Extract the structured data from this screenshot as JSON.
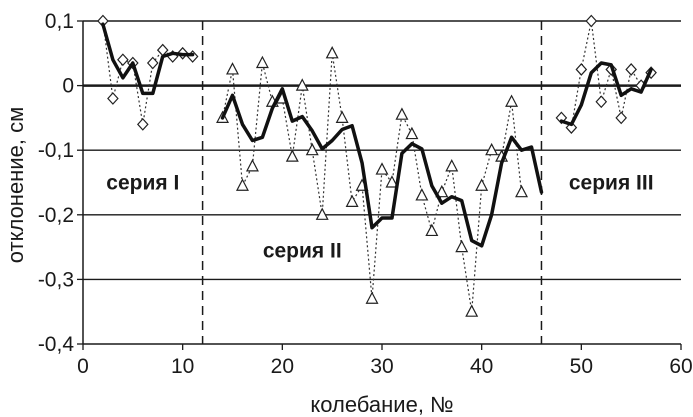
{
  "chart_data": {
    "type": "line",
    "title": "",
    "xlabel": "колебание, №",
    "ylabel": "отклонение, см",
    "xlim": [
      0,
      60
    ],
    "ylim": [
      -0.4,
      0.1
    ],
    "xticks": [
      0,
      10,
      20,
      30,
      40,
      50,
      60
    ],
    "yticks": [
      0.1,
      0,
      -0.1,
      -0.2,
      -0.3,
      -0.4
    ],
    "xtick_labels": [
      "0",
      "10",
      "20",
      "30",
      "40",
      "50",
      "60"
    ],
    "ytick_labels": [
      "0,1",
      "0",
      "-0,1",
      "-0,2",
      "-0,3",
      "-0,4"
    ],
    "grid": "horizontal",
    "series_separators_x": [
      12,
      46
    ],
    "annotations": [
      {
        "text": "серия I",
        "x": 6,
        "y": -0.15
      },
      {
        "text": "серия II",
        "x": 22,
        "y": -0.255
      },
      {
        "text": "серия III",
        "x": 53,
        "y": -0.15
      }
    ],
    "series": [
      {
        "marker": "diamond",
        "style": "dotted",
        "segments": [
          [
            [
              2,
              0.1
            ],
            [
              3,
              -0.02
            ],
            [
              4,
              0.04
            ],
            [
              5,
              0.035
            ],
            [
              6,
              -0.06
            ],
            [
              7,
              0.035
            ],
            [
              8,
              0.055
            ],
            [
              9,
              0.045
            ],
            [
              10,
              0.05
            ],
            [
              11,
              0.045
            ]
          ],
          [
            [
              48,
              -0.05
            ],
            [
              49,
              -0.065
            ],
            [
              50,
              0.025
            ],
            [
              51,
              0.1
            ],
            [
              52,
              -0.025
            ],
            [
              53,
              0.025
            ],
            [
              54,
              -0.05
            ],
            [
              55,
              0.025
            ],
            [
              56,
              0.0
            ],
            [
              57,
              0.02
            ]
          ]
        ]
      },
      {
        "marker": "triangle",
        "style": "dotted",
        "segments": [
          [
            [
              14,
              -0.05
            ],
            [
              15,
              0.025
            ],
            [
              16,
              -0.155
            ],
            [
              17,
              -0.125
            ],
            [
              18,
              0.035
            ],
            [
              19,
              -0.025
            ],
            [
              20,
              -0.02
            ],
            [
              21,
              -0.11
            ],
            [
              22,
              0.0
            ],
            [
              23,
              -0.1
            ],
            [
              24,
              -0.2
            ],
            [
              25,
              0.05
            ],
            [
              26,
              -0.05
            ],
            [
              27,
              -0.18
            ],
            [
              28,
              -0.155
            ],
            [
              29,
              -0.33
            ],
            [
              30,
              -0.13
            ],
            [
              31,
              -0.15
            ],
            [
              32,
              -0.045
            ],
            [
              33,
              -0.075
            ],
            [
              34,
              -0.17
            ],
            [
              35,
              -0.225
            ],
            [
              36,
              -0.165
            ],
            [
              37,
              -0.125
            ],
            [
              38,
              -0.25
            ],
            [
              39,
              -0.35
            ],
            [
              40,
              -0.155
            ],
            [
              41,
              -0.1
            ],
            [
              42,
              -0.11
            ],
            [
              43,
              -0.025
            ],
            [
              44,
              -0.165
            ]
          ]
        ]
      },
      {
        "marker": "none",
        "style": "solid",
        "segments": [
          [
            [
              2,
              0.095
            ],
            [
              3,
              0.04
            ],
            [
              4,
              0.012
            ],
            [
              5,
              0.035
            ],
            [
              6,
              -0.012
            ],
            [
              7,
              -0.012
            ],
            [
              8,
              0.045
            ],
            [
              9,
              0.05
            ],
            [
              10,
              0.048
            ],
            [
              11,
              0.048
            ]
          ],
          [
            [
              14,
              -0.05
            ],
            [
              15,
              -0.015
            ],
            [
              16,
              -0.06
            ],
            [
              17,
              -0.085
            ],
            [
              18,
              -0.08
            ],
            [
              19,
              -0.035
            ],
            [
              20,
              -0.005
            ],
            [
              21,
              -0.055
            ],
            [
              22,
              -0.048
            ],
            [
              23,
              -0.07
            ],
            [
              24,
              -0.098
            ],
            [
              25,
              -0.085
            ],
            [
              26,
              -0.068
            ],
            [
              27,
              -0.062
            ],
            [
              28,
              -0.12
            ],
            [
              29,
              -0.22
            ],
            [
              30,
              -0.205
            ],
            [
              31,
              -0.205
            ],
            [
              32,
              -0.105
            ],
            [
              33,
              -0.09
            ],
            [
              34,
              -0.098
            ],
            [
              35,
              -0.155
            ],
            [
              36,
              -0.182
            ],
            [
              37,
              -0.172
            ],
            [
              38,
              -0.178
            ],
            [
              39,
              -0.24
            ],
            [
              40,
              -0.248
            ],
            [
              41,
              -0.2
            ],
            [
              42,
              -0.12
            ],
            [
              43,
              -0.08
            ],
            [
              44,
              -0.1
            ],
            [
              45,
              -0.095
            ],
            [
              46,
              -0.165
            ]
          ],
          [
            [
              48,
              -0.055
            ],
            [
              49,
              -0.06
            ],
            [
              50,
              -0.03
            ],
            [
              51,
              0.02
            ],
            [
              52,
              0.035
            ],
            [
              53,
              0.032
            ],
            [
              54,
              -0.015
            ],
            [
              55,
              -0.005
            ],
            [
              56,
              -0.01
            ],
            [
              57,
              0.025
            ]
          ]
        ]
      }
    ]
  }
}
